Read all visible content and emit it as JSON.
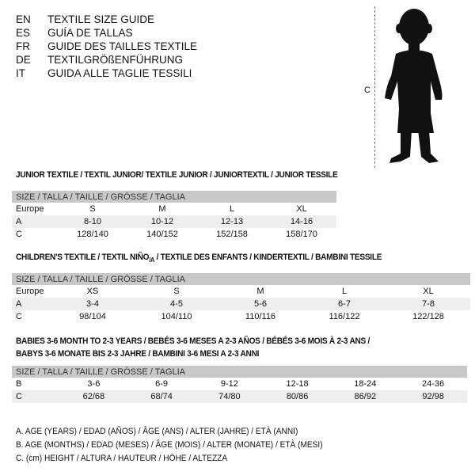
{
  "languages": [
    {
      "code": "EN",
      "text": "TEXTILE SIZE GUIDE"
    },
    {
      "code": "ES",
      "text": "GUÍA DE TALLAS"
    },
    {
      "code": "FR",
      "text": "GUIDE DES TAILLES TEXTILE"
    },
    {
      "code": "DE",
      "text": "TEXTILGRÖßENFÜHRUNG"
    },
    {
      "code": "IT",
      "text": "GUIDA ALLE TAGLIE TESSILI"
    }
  ],
  "figure": {
    "icon": "child-silhouette-icon",
    "height_label": "C"
  },
  "junior": {
    "title": "JUNIOR TEXTILE / TEXTIL JUNIOR/ TEXTILE JUNIOR / JUNIORTEXTIL / JUNIOR TESSILE",
    "header": "SIZE / TALLA / TAILLE / GRÖSSE / TAGLIA",
    "rows": [
      {
        "label": "Europe",
        "values": [
          "S",
          "M",
          "L",
          "XL"
        ]
      },
      {
        "label": "A",
        "values": [
          "8-10",
          "10-12",
          "12-13",
          "14-16"
        ]
      },
      {
        "label": "C",
        "values": [
          "128/140",
          "140/152",
          "152/158",
          "158/170"
        ]
      }
    ]
  },
  "children": {
    "title": "CHILDREN'S TEXTILE / TEXTIL NIÑO/A / TEXTILE DES ENFANTS / KINDERTEXTIL / BAMBINI TESSILE",
    "header": "SIZE / TALLA / TAILLE / GRÖSSE / TAGLIA",
    "rows": [
      {
        "label": "Europe",
        "values": [
          "XS",
          "S",
          "M",
          "L",
          "XL"
        ]
      },
      {
        "label": "A",
        "values": [
          "3-4",
          "4-5",
          "5-6",
          "6-7",
          "7-8"
        ]
      },
      {
        "label": "C",
        "values": [
          "98/104",
          "104/110",
          "110/116",
          "116/122",
          "122/128"
        ]
      }
    ]
  },
  "babies": {
    "title1": "BABIES 3-6 MONTH TO 2-3 YEARS / BEBÉS 3-6 MESES A 2-3 AÑOS / BÉBÉS 3-6 MOIS À 2-3 ANS /",
    "title2": "BABYS 3-6 MONATE BIS 2-3 JAHRE / BAMBINI 3-6 MESI A 2-3 ANNI",
    "header": "SIZE / TALLA / TAILLE / GRÖSSE / TAGLIA",
    "rows": [
      {
        "label": "B",
        "values": [
          "3-6",
          "6-9",
          "9-12",
          "12-18",
          "18-24",
          "24-36"
        ]
      },
      {
        "label": "C",
        "values": [
          "62/68",
          "68/74",
          "74/80",
          "80/86",
          "86/92",
          "92/98"
        ]
      }
    ]
  },
  "legend": [
    "A. AGE (YEARS) / EDAD (AÑOS) / ÂGE (ANS) / ALTER (JAHRE) / ETÀ (ANNI)",
    "B. AGE (MONTHS) / EDAD (MESES) / ÂGE (MOIS) / ALTER (MONATE) / ETÀ (MESI)",
    "C. (cm) HEIGHT / ALTURA / HAUTEUR / HÖHE / ALTEZZA"
  ]
}
